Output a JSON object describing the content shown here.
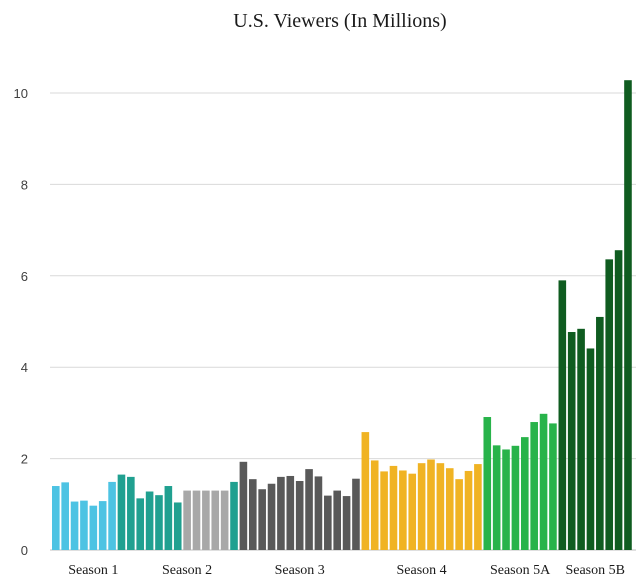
{
  "chart_data": {
    "type": "bar",
    "title": "U.S. Viewers (In Millions)",
    "xlabel": "",
    "ylabel": "",
    "ylim": [
      0,
      10.5
    ],
    "yticks": [
      0,
      2,
      4,
      6,
      8,
      10
    ],
    "grid": true,
    "legend": "none",
    "series": [
      {
        "group": "Season 1",
        "color": "#4dc3e3",
        "values": [
          1.4,
          1.48,
          1.06,
          1.08,
          0.97,
          1.07,
          1.49
        ]
      },
      {
        "group": "Season 1",
        "color": "#20a090",
        "values": [
          1.65,
          1.6
        ]
      },
      {
        "group": "Season 2",
        "color": "#20a090",
        "values": [
          1.13,
          1.28,
          1.2,
          1.4,
          1.04
        ]
      },
      {
        "group": "Season 2",
        "color": "#a8a8a8",
        "values": [
          1.3,
          1.3,
          1.3,
          1.3,
          1.3
        ]
      },
      {
        "group": "Season 2",
        "color": "#20a090",
        "values": [
          1.49
        ]
      },
      {
        "group": "Season 3",
        "color": "#595959",
        "values": [
          1.93,
          1.55,
          1.33,
          1.45,
          1.6,
          1.62,
          1.51,
          1.77,
          1.61,
          1.19,
          1.3,
          1.18,
          1.56
        ]
      },
      {
        "group": "Season 4",
        "color": "#f0b323",
        "values": [
          2.58,
          1.96,
          1.72,
          1.84,
          1.74,
          1.67,
          1.9,
          1.98,
          1.9,
          1.79,
          1.55,
          1.73,
          1.88
        ]
      },
      {
        "group": "Season 5A",
        "color": "#28b34a",
        "values": [
          2.91,
          2.29,
          2.2,
          2.28,
          2.47,
          2.8,
          2.98,
          2.77
        ]
      },
      {
        "group": "Season 5B",
        "color": "#0f5c20",
        "values": [
          5.9,
          4.77,
          4.84,
          4.41,
          5.1,
          6.36,
          6.56,
          10.28
        ]
      }
    ],
    "season_labels": [
      "Season 1",
      "Season 2",
      "Season 3",
      "Season 4",
      "Season 5A",
      "Season 5B"
    ]
  }
}
